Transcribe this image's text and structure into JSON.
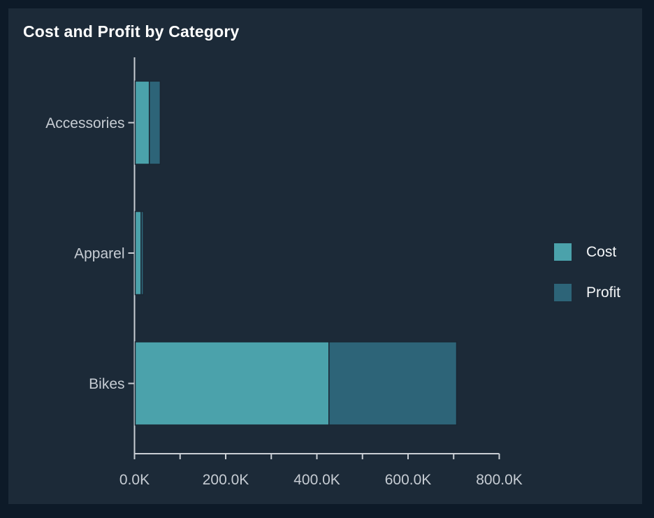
{
  "title": "Cost and Profit by Category",
  "colors": {
    "background_outer": "#0d1a28",
    "background_card": "#1c2a38",
    "cost": "#4ba2ab",
    "profit": "#2d6478",
    "axis_line": "#c9ced4",
    "tick_label_text": "#c6ccd3",
    "category_label_text": "#c6ccd3",
    "title_text": "#ffffff",
    "legend_text": "#f4f6f8",
    "bar_border": "#1a2633"
  },
  "legend": {
    "position": "right",
    "items": [
      {
        "label": "Cost",
        "color": "#4ba2ab"
      },
      {
        "label": "Profit",
        "color": "#2d6478"
      }
    ]
  },
  "chart_data": {
    "type": "bar",
    "orientation": "horizontal",
    "stacked": true,
    "title": "Cost and Profit by Category",
    "categories": [
      "Accessories",
      "Apparel",
      "Bikes"
    ],
    "series": [
      {
        "name": "Cost",
        "values": [
          31000,
          13000,
          425000
        ]
      },
      {
        "name": "Profit",
        "values": [
          24000,
          5000,
          280000
        ]
      }
    ],
    "xlabel": "",
    "ylabel": "",
    "xlim": [
      0,
      800000
    ],
    "x_tick_values": [
      0,
      200000,
      400000,
      600000,
      800000
    ],
    "x_tick_labels": [
      "0.0K",
      "200.0K",
      "400.0K",
      "600.0K",
      "800.0K"
    ],
    "x_minor_tick_interval": 100000,
    "grid": false,
    "legend_position": "right"
  }
}
